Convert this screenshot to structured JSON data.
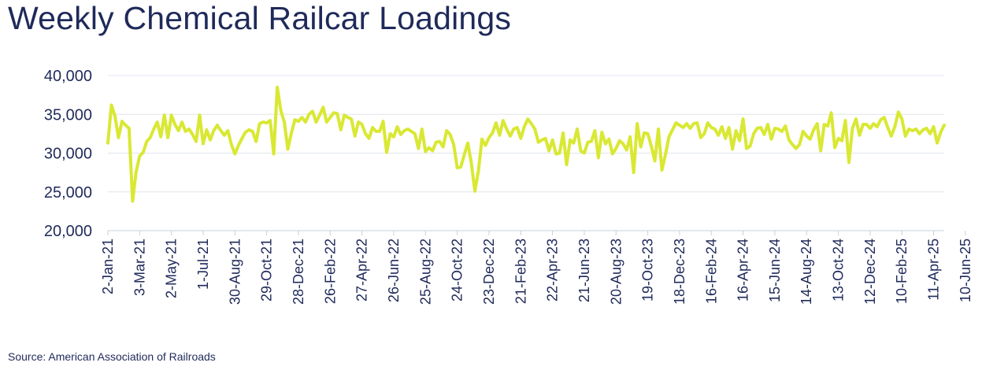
{
  "title": "Weekly Chemical Railcar Loadings",
  "source": "Source: American Association of Railroads",
  "colors": {
    "line": "#d9e833",
    "text": "#1f2a5a",
    "grid": "#dfe6ec",
    "axis": "#c8d0d8"
  },
  "chart_data": {
    "type": "line",
    "title": "Weekly Chemical Railcar Loadings",
    "xlabel": "",
    "ylabel": "",
    "ylim": [
      20000,
      40000
    ],
    "yticks": [
      20000,
      25000,
      30000,
      35000,
      40000
    ],
    "ytick_labels": [
      "20,000",
      "25,000",
      "30,000",
      "35,000",
      "40,000"
    ],
    "grid": true,
    "xtick_labels": [
      "2-Jan-21",
      "3-Mar-21",
      "2-May-21",
      "1-Jul-21",
      "30-Aug-21",
      "29-Oct-21",
      "28-Dec-21",
      "26-Feb-22",
      "27-Apr-22",
      "26-Jun-22",
      "25-Aug-22",
      "24-Oct-22",
      "23-Dec-22",
      "21-Feb-23",
      "22-Apr-23",
      "21-Jun-23",
      "20-Aug-23",
      "19-Oct-23",
      "18-Dec-23",
      "16-Feb-24",
      "16-Apr-24",
      "15-Jun-24",
      "14-Aug-24",
      "13-Oct-24",
      "12-Dec-24",
      "10-Feb-25",
      "11-Apr-25",
      "10-Jun-25"
    ],
    "series": [
      {
        "values": [
          31300,
          36200,
          34800,
          32000,
          34100,
          33600,
          33200,
          23800,
          27600,
          29600,
          30100,
          31500,
          32000,
          33100,
          34000,
          32100,
          34900,
          32000,
          34900,
          33700,
          32900,
          34000,
          32800,
          33100,
          32400,
          31500,
          34900,
          31200,
          33000,
          31700,
          32900,
          33600,
          32900,
          32300,
          32900,
          31100,
          29900,
          31000,
          31900,
          32700,
          33000,
          32800,
          31500,
          33800,
          34000,
          33900,
          34200,
          29900,
          38500,
          35500,
          34000,
          30500,
          32600,
          34300,
          34100,
          34600,
          34000,
          35000,
          35400,
          34000,
          34900,
          35900,
          34000,
          34600,
          35200,
          35100,
          33000,
          34900,
          34600,
          34400,
          32200,
          34000,
          33700,
          32500,
          31900,
          33300,
          32800,
          32800,
          34100,
          30100,
          32500,
          32100,
          33400,
          32400,
          32900,
          33100,
          32800,
          32500,
          30600,
          33100,
          30200,
          30700,
          30300,
          31400,
          31500,
          30800,
          32900,
          32400,
          31100,
          28100,
          28200,
          29800,
          31300,
          28700,
          25100,
          27700,
          31800,
          31000,
          32000,
          32600,
          33900,
          32300,
          34200,
          33100,
          32200,
          33100,
          33300,
          31900,
          33400,
          34400,
          33800,
          33100,
          31400,
          31700,
          31900,
          30300,
          31700,
          29900,
          30000,
          32600,
          28500,
          31700,
          31300,
          33100,
          30300,
          30000,
          31400,
          31500,
          32900,
          29400,
          32700,
          31200,
          31800,
          29900,
          30600,
          31600,
          31200,
          30400,
          32100,
          27500,
          33800,
          30800,
          32600,
          32500,
          30900,
          29000,
          33100,
          27800,
          29800,
          32100,
          33000,
          33900,
          33600,
          33300,
          33800,
          33200,
          33800,
          33900,
          32000,
          32500,
          33900,
          33300,
          33100,
          32300,
          33400,
          31900,
          33300,
          30500,
          32900,
          31600,
          34400,
          30600,
          30900,
          32500,
          33200,
          33300,
          32400,
          33700,
          31800,
          33200,
          33100,
          32800,
          33500,
          31700,
          31100,
          30600,
          31100,
          32800,
          32200,
          31800,
          33000,
          33800,
          30300,
          33700,
          33500,
          35200,
          30700,
          31900,
          31600,
          34200,
          28800,
          33200,
          34400,
          32300,
          33700,
          33700,
          33200,
          33800,
          33400,
          34300,
          34600,
          33300,
          32200,
          33400,
          35300,
          34400,
          32200,
          33100,
          32900,
          33100,
          32500,
          33000,
          33200,
          32500,
          33400,
          31300,
          32700,
          33600
        ]
      }
    ]
  }
}
